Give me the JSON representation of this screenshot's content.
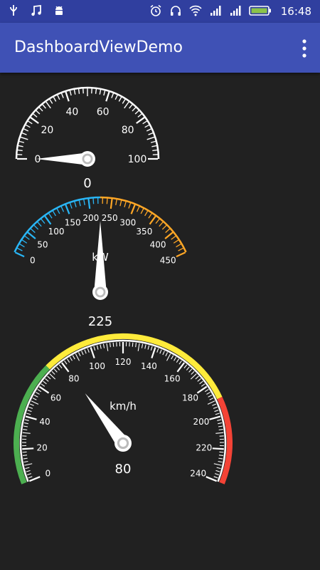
{
  "status_bar": {
    "time": "16:48",
    "left_icons": [
      "usb-icon",
      "music-note-icon",
      "android-icon"
    ],
    "right_icons": [
      "alarm-icon",
      "headset-icon",
      "wifi-icon",
      "signal-icon",
      "signal-icon",
      "battery-icon"
    ]
  },
  "app_bar": {
    "title": "DashboardViewDemo",
    "menu_icon": "overflow-menu-icon"
  },
  "gauges": [
    {
      "min": 0,
      "max": 100,
      "value": 0,
      "ticks": [
        "0",
        "20",
        "40",
        "60",
        "80",
        "100"
      ],
      "value_text": "0",
      "unit": ""
    },
    {
      "min": 0,
      "max": 450,
      "value": 225,
      "ticks": [
        "0",
        "50",
        "100",
        "150",
        "200",
        "250",
        "300",
        "350",
        "400",
        "450"
      ],
      "value_text": "225",
      "unit": "kW",
      "colors": {
        "low": "#29B6F6",
        "high": "#FFA726"
      }
    },
    {
      "min": 0,
      "max": 240,
      "value": 80,
      "ticks": [
        "0",
        "20",
        "40",
        "60",
        "80",
        "100",
        "120",
        "140",
        "160",
        "180",
        "200",
        "220",
        "240"
      ],
      "value_text": "80",
      "unit": "km/h",
      "colors": {
        "green": "#4CAF50",
        "yellow": "#FFEB3B",
        "red": "#F44336"
      }
    }
  ]
}
